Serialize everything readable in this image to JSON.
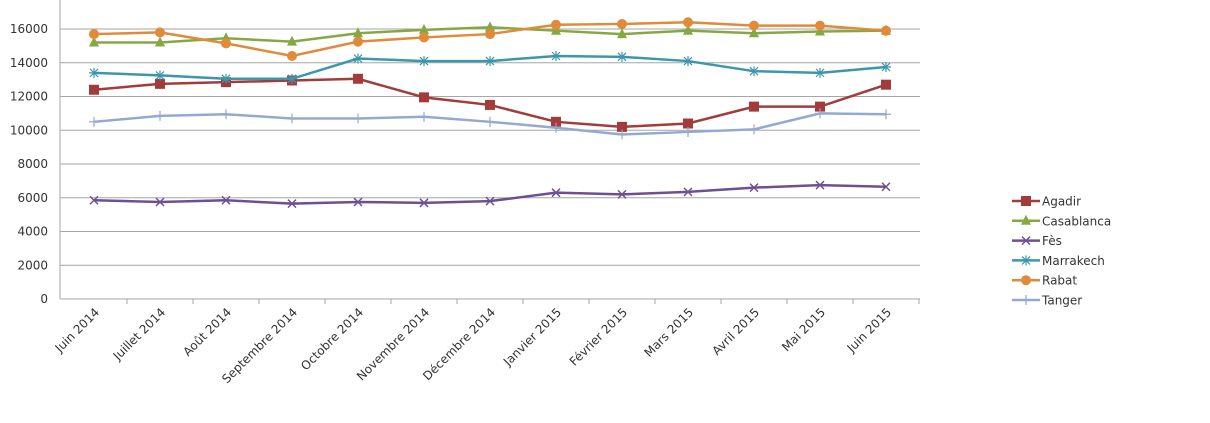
{
  "chart_data": {
    "type": "line",
    "title": "",
    "xlabel": "",
    "ylabel": "",
    "ylim": [
      0,
      16000
    ],
    "yticks": [
      0,
      2000,
      4000,
      6000,
      8000,
      10000,
      12000,
      14000,
      16000
    ],
    "grid": true,
    "legend_position": "right",
    "categories": [
      "Juin 2014",
      "Juillet 2014",
      "Août 2014",
      "Septembre 2014",
      "Octobre 2014",
      "Novembre 2014",
      "Décembre 2014",
      "Janvier 2015",
      "Février 2015",
      "Mars 2015",
      "Avril 2015",
      "Mai 2015",
      "Juin 2015"
    ],
    "series": [
      {
        "name": "Agadir",
        "color": "#a33b3b",
        "marker": "square",
        "values": [
          12400,
          12750,
          12850,
          12950,
          13050,
          11950,
          11500,
          10500,
          10200,
          10400,
          11400,
          11400,
          12700
        ]
      },
      {
        "name": "Casablanca",
        "color": "#86a844",
        "marker": "triangle",
        "values": [
          15200,
          15200,
          15450,
          15250,
          15750,
          15950,
          16100,
          15900,
          15700,
          15900,
          15750,
          15850,
          15900
        ]
      },
      {
        "name": "Fès",
        "color": "#6e4f93",
        "marker": "x",
        "values": [
          5850,
          5750,
          5850,
          5650,
          5750,
          5700,
          5800,
          6300,
          6200,
          6350,
          6600,
          6750,
          6650
        ]
      },
      {
        "name": "Marrakech",
        "color": "#3b97ab",
        "marker": "star",
        "values": [
          13400,
          13250,
          13050,
          13050,
          14250,
          14100,
          14100,
          14400,
          14350,
          14100,
          13500,
          13400,
          13750
        ]
      },
      {
        "name": "Rabat",
        "color": "#e08a3a",
        "marker": "circle",
        "values": [
          15700,
          15800,
          15150,
          14400,
          15250,
          15500,
          15700,
          16250,
          16300,
          16400,
          16200,
          16200,
          15900
        ]
      },
      {
        "name": "Tanger",
        "color": "#93a9cf",
        "marker": "plus",
        "values": [
          10500,
          10850,
          10950,
          10700,
          10700,
          10800,
          10500,
          10150,
          9750,
          9900,
          10050,
          11000,
          10950
        ]
      }
    ]
  }
}
